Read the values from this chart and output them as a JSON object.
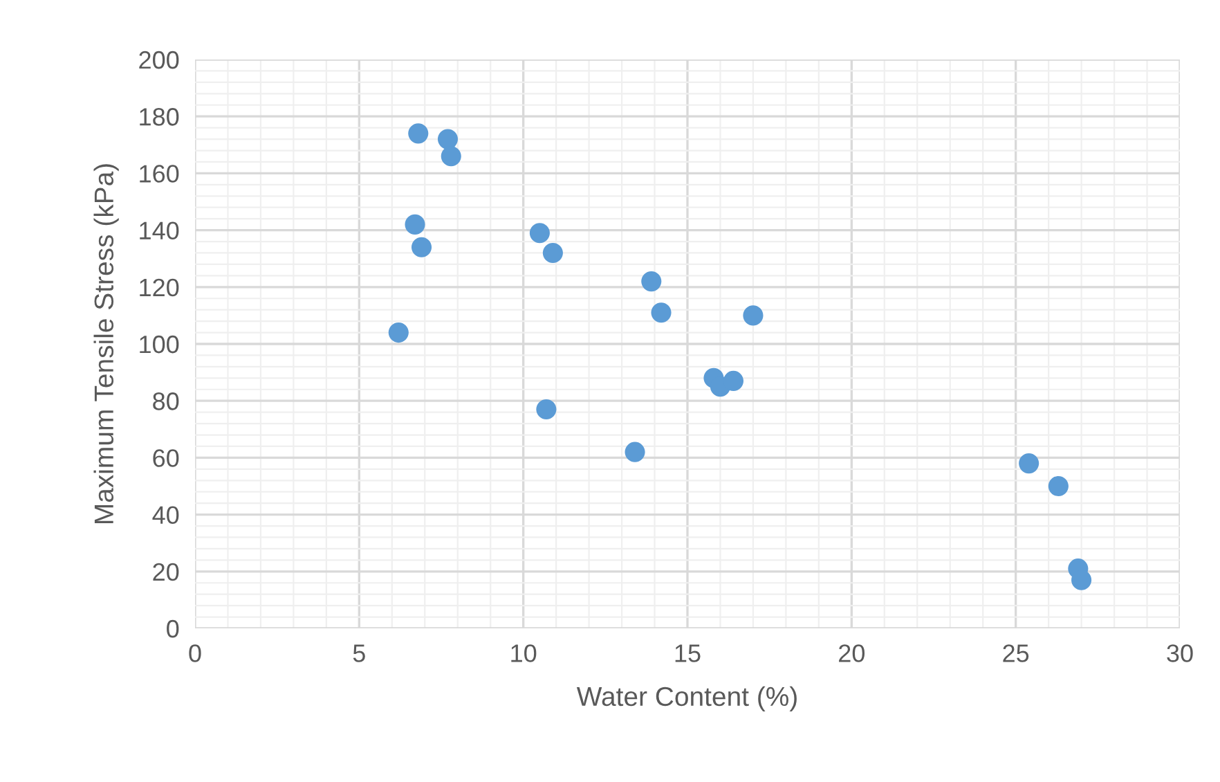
{
  "chart_data": {
    "type": "scatter",
    "xlabel": "Water Content (%)",
    "ylabel": "Maximum Tensile Stress (kPa)",
    "x": [
      6.8,
      7.7,
      7.8,
      6.7,
      6.9,
      6.2,
      10.5,
      10.9,
      13.9,
      14.2,
      17.0,
      15.8,
      16.0,
      16.4,
      10.7,
      13.4,
      25.4,
      26.3,
      26.9,
      27.0
    ],
    "values": [
      174,
      172,
      166,
      142,
      134,
      104,
      139,
      132,
      122,
      111,
      110,
      88,
      85,
      87,
      77,
      62,
      58,
      50,
      21,
      17
    ],
    "color": "#5b9bd5",
    "marker": "circle",
    "xlim": [
      0,
      30
    ],
    "xticks": [
      0,
      5,
      10,
      15,
      20,
      25,
      30
    ],
    "ylim": [
      0,
      200
    ],
    "yticks": [
      0,
      20,
      40,
      60,
      80,
      100,
      120,
      140,
      160,
      180,
      200
    ],
    "grid": true
  }
}
